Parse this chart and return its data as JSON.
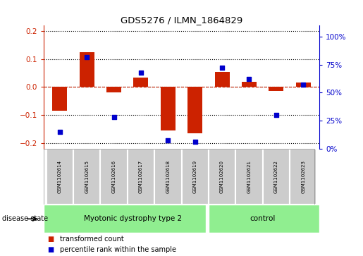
{
  "title": "GDS5276 / ILMN_1864829",
  "categories": [
    "GSM1102614",
    "GSM1102615",
    "GSM1102616",
    "GSM1102617",
    "GSM1102618",
    "GSM1102619",
    "GSM1102620",
    "GSM1102621",
    "GSM1102622",
    "GSM1102623"
  ],
  "red_values": [
    -0.085,
    0.125,
    -0.018,
    0.035,
    -0.155,
    -0.165,
    0.055,
    0.02,
    -0.015,
    0.015
  ],
  "blue_values": [
    0.15,
    0.82,
    0.28,
    0.68,
    0.07,
    0.06,
    0.72,
    0.62,
    0.3,
    0.57
  ],
  "ylim_left": [
    -0.22,
    0.22
  ],
  "ylim_right": [
    0.0,
    1.1
  ],
  "yticks_left": [
    -0.2,
    -0.1,
    0.0,
    0.1,
    0.2
  ],
  "yticks_right": [
    0.0,
    0.25,
    0.5,
    0.75,
    1.0
  ],
  "ytick_labels_right": [
    "0%",
    "25%",
    "50%",
    "75%",
    "100%"
  ],
  "group_border": 6,
  "group1_label": "Myotonic dystrophy type 2",
  "group2_label": "control",
  "green_color": "#90ee90",
  "gray_color": "#cccccc",
  "red_color": "#cc2200",
  "blue_color": "#0000cc",
  "bar_width": 0.55,
  "disease_state_label": "disease state",
  "legend_red": "transformed count",
  "legend_blue": "percentile rank within the sample",
  "bg_color": "white"
}
